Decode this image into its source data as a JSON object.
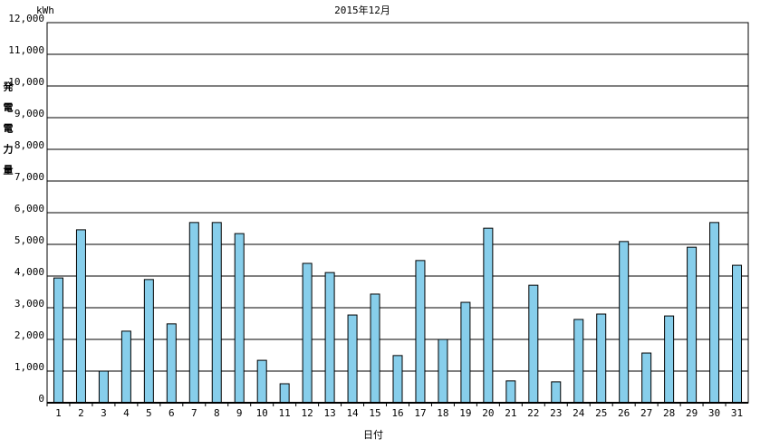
{
  "chart_data": {
    "type": "bar",
    "title": "2015年12月",
    "unit": "kWh",
    "y_label": "発電電力量",
    "x_label": "日付",
    "categories": [
      "1",
      "2",
      "3",
      "4",
      "5",
      "6",
      "7",
      "8",
      "9",
      "10",
      "11",
      "12",
      "13",
      "14",
      "15",
      "16",
      "17",
      "18",
      "19",
      "20",
      "21",
      "22",
      "23",
      "24",
      "25",
      "26",
      "27",
      "28",
      "29",
      "30",
      "31"
    ],
    "values": [
      3940,
      5460,
      1000,
      2260,
      3890,
      2490,
      5690,
      5690,
      5340,
      1340,
      600,
      4400,
      4110,
      2770,
      3430,
      1490,
      4490,
      2000,
      3170,
      5510,
      690,
      3710,
      660,
      2630,
      2800,
      5090,
      1570,
      2740,
      4910,
      5690,
      4340
    ],
    "color": "#87ceeb",
    "ylim": [
      0,
      12000
    ],
    "yticks": [
      0,
      {
        "value": 1000,
        "label": "1,000"
      },
      {
        "value": 2000,
        "label": "2,000"
      },
      {
        "value": 3000,
        "label": "3,000"
      },
      {
        "value": 4000,
        "label": "4,000"
      },
      {
        "value": 5000,
        "label": "5,000"
      },
      {
        "value": 6000,
        "label": "6,000"
      },
      {
        "value": 7000,
        "label": "7,000"
      },
      {
        "value": 8000,
        "label": "8,000"
      },
      {
        "value": 9000,
        "label": "9,000"
      },
      {
        "value": 10000,
        "label": "10,000"
      },
      {
        "value": 11000,
        "label": "11,000"
      },
      {
        "value": 12000,
        "label": "12,000"
      }
    ],
    "grid": true
  }
}
